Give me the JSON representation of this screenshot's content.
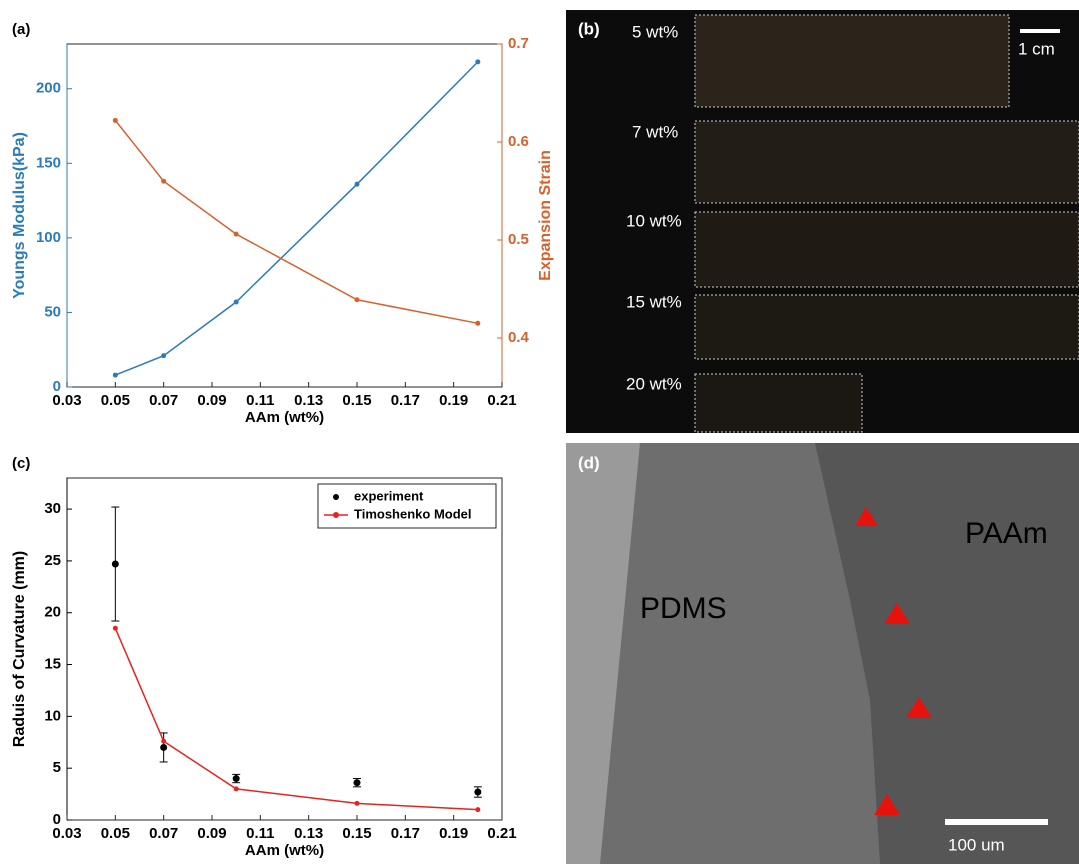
{
  "chart_data": [
    {
      "type": "line",
      "panel_label": "(a)",
      "x_label": "AAm (wt%)",
      "y_label": "Youngs Modulus(kPa)",
      "y2_label": "Expansion Strain",
      "x": [
        0.05,
        0.07,
        0.1,
        0.15,
        0.2
      ],
      "xlim": [
        0.03,
        0.21
      ],
      "xticks": [
        0.03,
        0.05,
        0.07,
        0.09,
        0.11,
        0.13,
        0.15,
        0.17,
        0.19,
        0.21
      ],
      "ylim": [
        0,
        230
      ],
      "yticks": [
        0,
        50,
        100,
        150,
        200
      ],
      "y2lim": [
        0.35,
        0.7
      ],
      "y2ticks": [
        0.4,
        0.5,
        0.6,
        0.7
      ],
      "series": [
        {
          "color": "#2b7bba",
          "style": "line",
          "values": [
            8,
            21,
            57,
            136,
            218
          ]
        },
        {
          "color": "#d8602b",
          "style": "line",
          "axis": "y2",
          "values": [
            0.622,
            0.56,
            0.506,
            0.439,
            0.415
          ]
        }
      ]
    },
    {
      "type": "line",
      "panel_label": "(c)",
      "x_label": "AAm (wt%)",
      "y_label": "Raduis of Curvature (mm)",
      "x": [
        0.05,
        0.07,
        0.1,
        0.15,
        0.2
      ],
      "xlim": [
        0.03,
        0.21
      ],
      "xticks": [
        0.03,
        0.05,
        0.07,
        0.09,
        0.11,
        0.13,
        0.15,
        0.17,
        0.19,
        0.21
      ],
      "ylim": [
        0,
        33
      ],
      "yticks": [
        0,
        5,
        10,
        15,
        20,
        25,
        30
      ],
      "legend": "upper right",
      "series": [
        {
          "name": "experiment",
          "color": "#000000",
          "style": "markers",
          "values": [
            24.7,
            7.0,
            4.0,
            3.6,
            2.7
          ],
          "errors": [
            5.5,
            1.4,
            0.4,
            0.4,
            0.5
          ]
        },
        {
          "name": "Timoshenko Model",
          "color": "#e8231f",
          "style": "line",
          "values": [
            18.5,
            7.6,
            3.0,
            1.6,
            1.0
          ]
        }
      ]
    }
  ],
  "panel_b": {
    "label": "(b)",
    "rows": [
      "5 wt%",
      "7 wt%",
      "10 wt%",
      "15 wt%",
      "20 wt%"
    ],
    "scale": "1 cm"
  },
  "panel_d": {
    "label": "(d)",
    "left": "PDMS",
    "right": "PAAm",
    "scale": "100 um"
  }
}
